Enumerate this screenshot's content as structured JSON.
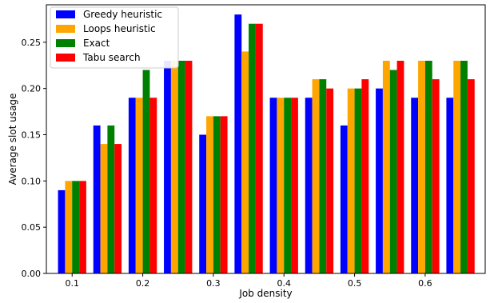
{
  "chart_data": {
    "type": "bar",
    "title": "",
    "xlabel": "Job density",
    "ylabel": "Average slot usage",
    "categories": [
      0.1,
      0.15,
      0.2,
      0.25,
      0.3,
      0.35,
      0.4,
      0.45,
      0.5,
      0.55,
      0.6,
      0.65
    ],
    "xticks": [
      "0.1",
      "0.2",
      "0.3",
      "0.4",
      "0.5",
      "0.6"
    ],
    "xtick_values": [
      0.1,
      0.2,
      0.3,
      0.4,
      0.5,
      0.6
    ],
    "yticks": [
      "0.00",
      "0.05",
      "0.10",
      "0.15",
      "0.20",
      "0.25"
    ],
    "ytick_values": [
      0.0,
      0.05,
      0.1,
      0.15,
      0.2,
      0.25
    ],
    "xlim": [
      0.0635,
      0.685
    ],
    "ylim": [
      0.0,
      0.2905
    ],
    "grid": false,
    "legend_position": "top-left",
    "series": [
      {
        "name": "Greedy heuristic",
        "color": "#0000ff",
        "values": [
          0.09,
          0.16,
          0.19,
          0.23,
          0.15,
          0.28,
          0.19,
          0.19,
          0.16,
          0.2,
          0.19,
          0.19
        ]
      },
      {
        "name": "Loops heuristic",
        "color": "#ffa500",
        "values": [
          0.1,
          0.14,
          0.19,
          0.23,
          0.17,
          0.24,
          0.19,
          0.21,
          0.2,
          0.23,
          0.23,
          0.23
        ]
      },
      {
        "name": "Exact",
        "color": "#008000",
        "values": [
          0.1,
          0.16,
          0.22,
          0.23,
          0.17,
          0.27,
          0.19,
          0.21,
          0.2,
          0.22,
          0.23,
          0.23
        ]
      },
      {
        "name": "Tabu search",
        "color": "#ff0000",
        "values": [
          0.1,
          0.14,
          0.19,
          0.23,
          0.17,
          0.27,
          0.19,
          0.2,
          0.21,
          0.23,
          0.21,
          0.21
        ]
      }
    ]
  }
}
